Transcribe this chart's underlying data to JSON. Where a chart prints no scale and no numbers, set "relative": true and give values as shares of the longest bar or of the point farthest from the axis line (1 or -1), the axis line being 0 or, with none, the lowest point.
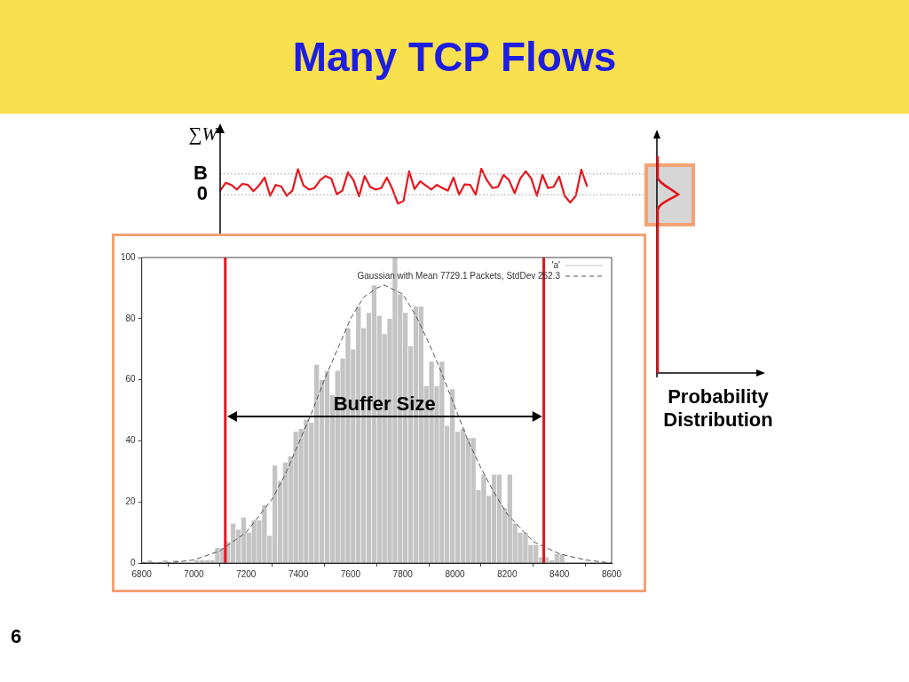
{
  "chart_data": [
    {
      "type": "line",
      "title": "Many TCP Flows",
      "ylabel": "∑W",
      "relative": true,
      "marker": "none",
      "categories": [
        null,
        null,
        null,
        null,
        null,
        null,
        null,
        null,
        null,
        null,
        null,
        null,
        null,
        null,
        null,
        null,
        null,
        null,
        null,
        null,
        null,
        null,
        null,
        null,
        null,
        null,
        null,
        null,
        null,
        null,
        null,
        null,
        null,
        null,
        null,
        null,
        null,
        null,
        null,
        null,
        null,
        null,
        null,
        null,
        null,
        null,
        null,
        null,
        null,
        null,
        null,
        null,
        null,
        null,
        null,
        null,
        null,
        null,
        null,
        null,
        null,
        null,
        null,
        null,
        null,
        null,
        null,
        null,
        null,
        null,
        null,
        null,
        null,
        null,
        null,
        null,
        null,
        null
      ],
      "series": [
        {
          "color": "#e8141c",
          "values": [
            0.16,
            0.46,
            0.38,
            0.2,
            0.42,
            0.38,
            0.14,
            0.36,
            0.66,
            -0.04,
            0.38,
            0.32,
            -0.04,
            0.16,
            0.98,
            0.36,
            0.2,
            0.26,
            0.56,
            0.72,
            0.62,
            0.02,
            0.16,
            0.86,
            0.56,
            -0.06,
            0.72,
            0.3,
            0.2,
            0.26,
            0.66,
            0.22,
            -0.34,
            -0.24,
            0.9,
            0.22,
            0.52,
            0.36,
            0.2,
            0.38,
            0.26,
            0.16,
            0.66,
            0,
            0.4,
            0.38,
            0,
            1,
            0.56,
            0.26,
            0.3,
            0.76,
            0.56,
            0.06,
            0.62,
            0.9,
            0.62,
            -0.04,
            0.76,
            0.26,
            0.3,
            0.7,
            -0.04,
            -0.3,
            -0.04,
            0.96,
            0.34,
            null,
            null,
            null,
            null,
            null,
            null,
            null,
            null,
            null,
            null,
            null
          ]
        }
      ],
      "ref_lines": [
        {
          "axis": "y",
          "value": 0.8,
          "label": "B",
          "color": "#999999",
          "line_style": "dotted"
        },
        {
          "axis": "y",
          "value": 0,
          "label": "0",
          "color": "#999999",
          "line_style": "dotted"
        }
      ],
      "annotations": [
        "Probability Distribution",
        "6"
      ]
    },
    {
      "type": "histogram",
      "legend": "top right",
      "bins": [
        6820,
        6840,
        6860,
        6880,
        6900,
        6920,
        6940,
        6960,
        6980,
        7000,
        7020,
        7040,
        7060,
        7080,
        7100,
        7120,
        7140,
        7160,
        7180,
        7200,
        7220,
        7240,
        7260,
        7280,
        7300,
        7320,
        7340,
        7360,
        7380,
        7400,
        7420,
        7440,
        7460,
        7480,
        7500,
        7520,
        7540,
        7560,
        7580,
        7600,
        7620,
        7640,
        7660,
        7680,
        7700,
        7720,
        7740,
        7760,
        7780,
        7800,
        7820,
        7840,
        7860,
        7880,
        7900,
        7920,
        7940,
        7960,
        7980,
        8000,
        8020,
        8040,
        8060,
        8080,
        8100,
        8120,
        8140,
        8160,
        8180,
        8200,
        8220,
        8240,
        8260,
        8280,
        8300,
        8320,
        8340,
        8360,
        8380,
        8400,
        8420
      ],
      "xlim": [
        6800,
        8600
      ],
      "xticks": [
        6800,
        7000,
        7200,
        7400,
        7600,
        7800,
        8000,
        8200,
        8400,
        8600
      ],
      "ylim": [
        0,
        100
      ],
      "yticks": [
        0,
        20,
        40,
        60,
        80,
        100
      ],
      "series": [
        {
          "name": "'a'",
          "color": "#c4c4c4",
          "values": [
            1,
            0,
            0,
            1,
            0,
            1,
            0,
            0,
            0,
            1,
            1,
            1,
            1,
            5,
            5,
            7,
            13,
            11,
            15,
            10,
            14,
            14,
            19,
            9,
            32,
            27,
            33,
            35,
            43,
            44,
            47,
            46,
            65,
            60,
            63,
            55,
            63,
            67,
            77,
            70,
            84,
            77,
            82,
            91,
            81,
            75,
            80,
            100,
            88,
            82,
            71,
            84,
            84,
            58,
            66,
            58,
            66,
            45,
            57,
            43,
            44,
            41,
            41,
            24,
            29,
            22,
            29,
            29,
            18,
            29,
            13,
            10,
            10,
            6,
            6,
            2,
            2,
            1,
            3,
            3
          ]
        },
        {
          "name": "Gaussian with Mean 7729.1 Packets, StdDev 252.3",
          "type": "line",
          "line_style": "dashed",
          "color": "#555555",
          "x": [
            6800,
            6900,
            7000,
            7100,
            7200,
            7300,
            7350,
            7400,
            7450,
            7500,
            7600,
            7650,
            7700,
            7729.1,
            7800,
            7850,
            7900,
            7950,
            8000,
            8050,
            8100,
            8150,
            8200,
            8300,
            8400,
            8500,
            8600
          ],
          "values": [
            0,
            0,
            1,
            4,
            10,
            21,
            29,
            39,
            49,
            60,
            80,
            87,
            90,
            91,
            88,
            81,
            72,
            62,
            51,
            40,
            31,
            23,
            16,
            7,
            3,
            1,
            0
          ]
        }
      ],
      "ref_lines": [
        {
          "axis": "x",
          "value": 7120,
          "color": "#e8141c"
        },
        {
          "axis": "x",
          "value": 8340,
          "color": "#e8141c"
        }
      ],
      "annotations": [
        {
          "text": "Buffer Size",
          "x": 7730,
          "y": 48
        }
      ]
    }
  ]
}
